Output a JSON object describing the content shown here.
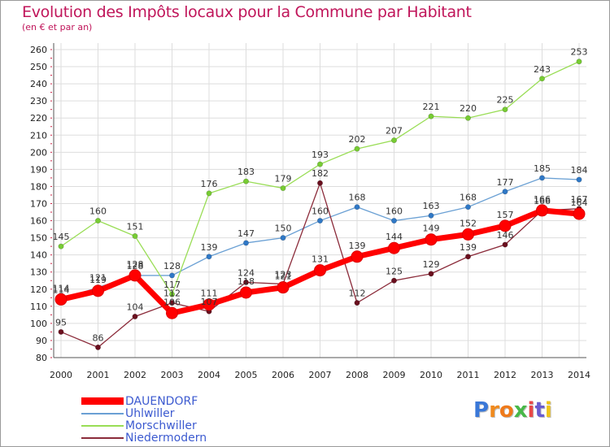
{
  "title": "Evolution des Impôts locaux pour la Commune par Habitant",
  "subtitle": "(en € et par an)",
  "logo_text": "Proxiti",
  "chart_data": {
    "type": "line",
    "categories": [
      "2000",
      "2001",
      "2002",
      "2003",
      "2004",
      "2005",
      "2006",
      "2007",
      "2008",
      "2009",
      "2010",
      "2011",
      "2012",
      "2013",
      "2014"
    ],
    "ylim": [
      80,
      260
    ],
    "yticks": [
      80,
      90,
      100,
      110,
      120,
      130,
      140,
      150,
      160,
      170,
      180,
      190,
      200,
      210,
      220,
      230,
      240,
      250,
      260
    ],
    "grid": true,
    "legend_position": "bottom-left",
    "series": [
      {
        "name": "DAUENDORF",
        "color": "#ff0000",
        "marker_color": "#e00000",
        "values": [
          114,
          119,
          128,
          106,
          111,
          118,
          121,
          131,
          139,
          144,
          149,
          152,
          157,
          166,
          164
        ],
        "emphasis": true
      },
      {
        "name": "Uhlwiller",
        "color": "#6aa0d4",
        "marker_color": "#2f78c6",
        "values": [
          114,
          121,
          128,
          128,
          139,
          147,
          150,
          160,
          168,
          160,
          163,
          168,
          177,
          185,
          184
        ]
      },
      {
        "name": "Morschwiller",
        "color": "#99dd55",
        "marker_color": "#77cc33",
        "values": [
          145,
          160,
          151,
          117,
          176,
          183,
          179,
          193,
          202,
          207,
          221,
          220,
          225,
          243,
          253
        ]
      },
      {
        "name": "Niedermodern",
        "color": "#8b2b3a",
        "marker_color": "#6a0f1e",
        "values": [
          95,
          86,
          104,
          112,
          107,
          124,
          123,
          182,
          112,
          125,
          129,
          139,
          146,
          166,
          167
        ]
      }
    ]
  }
}
